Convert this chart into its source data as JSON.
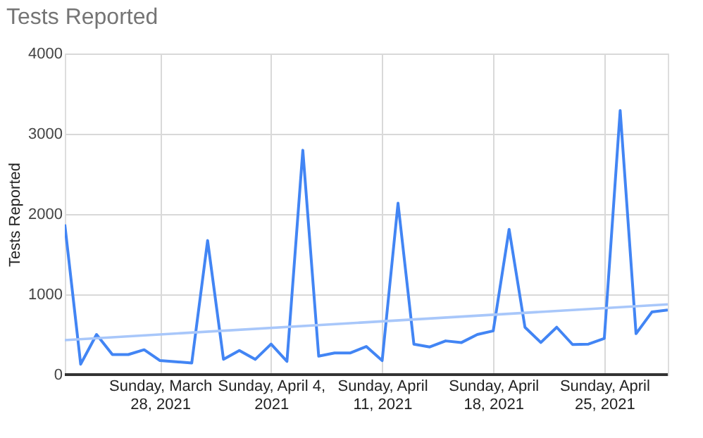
{
  "chart_data": {
    "type": "line",
    "title": "Tests Reported",
    "ylabel": "Tests Reported",
    "x": [
      "2021-03-22",
      "2021-03-23",
      "2021-03-24",
      "2021-03-25",
      "2021-03-26",
      "2021-03-27",
      "2021-03-28",
      "2021-03-29",
      "2021-03-30",
      "2021-03-31",
      "2021-04-01",
      "2021-04-02",
      "2021-04-03",
      "2021-04-04",
      "2021-04-05",
      "2021-04-06",
      "2021-04-07",
      "2021-04-08",
      "2021-04-09",
      "2021-04-10",
      "2021-04-11",
      "2021-04-12",
      "2021-04-13",
      "2021-04-14",
      "2021-04-15",
      "2021-04-16",
      "2021-04-17",
      "2021-04-18",
      "2021-04-19",
      "2021-04-20",
      "2021-04-21",
      "2021-04-22",
      "2021-04-23",
      "2021-04-24",
      "2021-04-25",
      "2021-04-26",
      "2021-04-27",
      "2021-04-28",
      "2021-04-29"
    ],
    "series": [
      {
        "color": "#4285f4",
        "values": [
          1870,
          130,
          500,
          250,
          250,
          310,
          175,
          160,
          145,
          1670,
          190,
          300,
          190,
          380,
          165,
          2795,
          230,
          270,
          270,
          350,
          175,
          2135,
          380,
          345,
          420,
          400,
          500,
          545,
          1810,
          590,
          400,
          590,
          375,
          380,
          450,
          3290,
          510,
          780,
          805
        ]
      },
      {
        "type": "line",
        "color": "#a8c7fa",
        "x": [
          "2021-03-22",
          "2021-04-29"
        ],
        "values": [
          430,
          875
        ]
      }
    ],
    "xlim": [
      "2021-03-22",
      "2021-04-29"
    ],
    "xticks": [
      {
        "value": "2021-03-28",
        "label": "Sunday, March 28, 2021"
      },
      {
        "value": "2021-04-04",
        "label": "Sunday, April 4, 2021"
      },
      {
        "value": "2021-04-11",
        "label": "Sunday, April 11, 2021"
      },
      {
        "value": "2021-04-18",
        "label": "Sunday, April 18, 2021"
      },
      {
        "value": "2021-04-25",
        "label": "Sunday, April 25, 2021"
      }
    ],
    "ylim": [
      0,
      4000
    ],
    "yticks": [
      0,
      1000,
      2000,
      3000,
      4000
    ],
    "grid": true
  }
}
